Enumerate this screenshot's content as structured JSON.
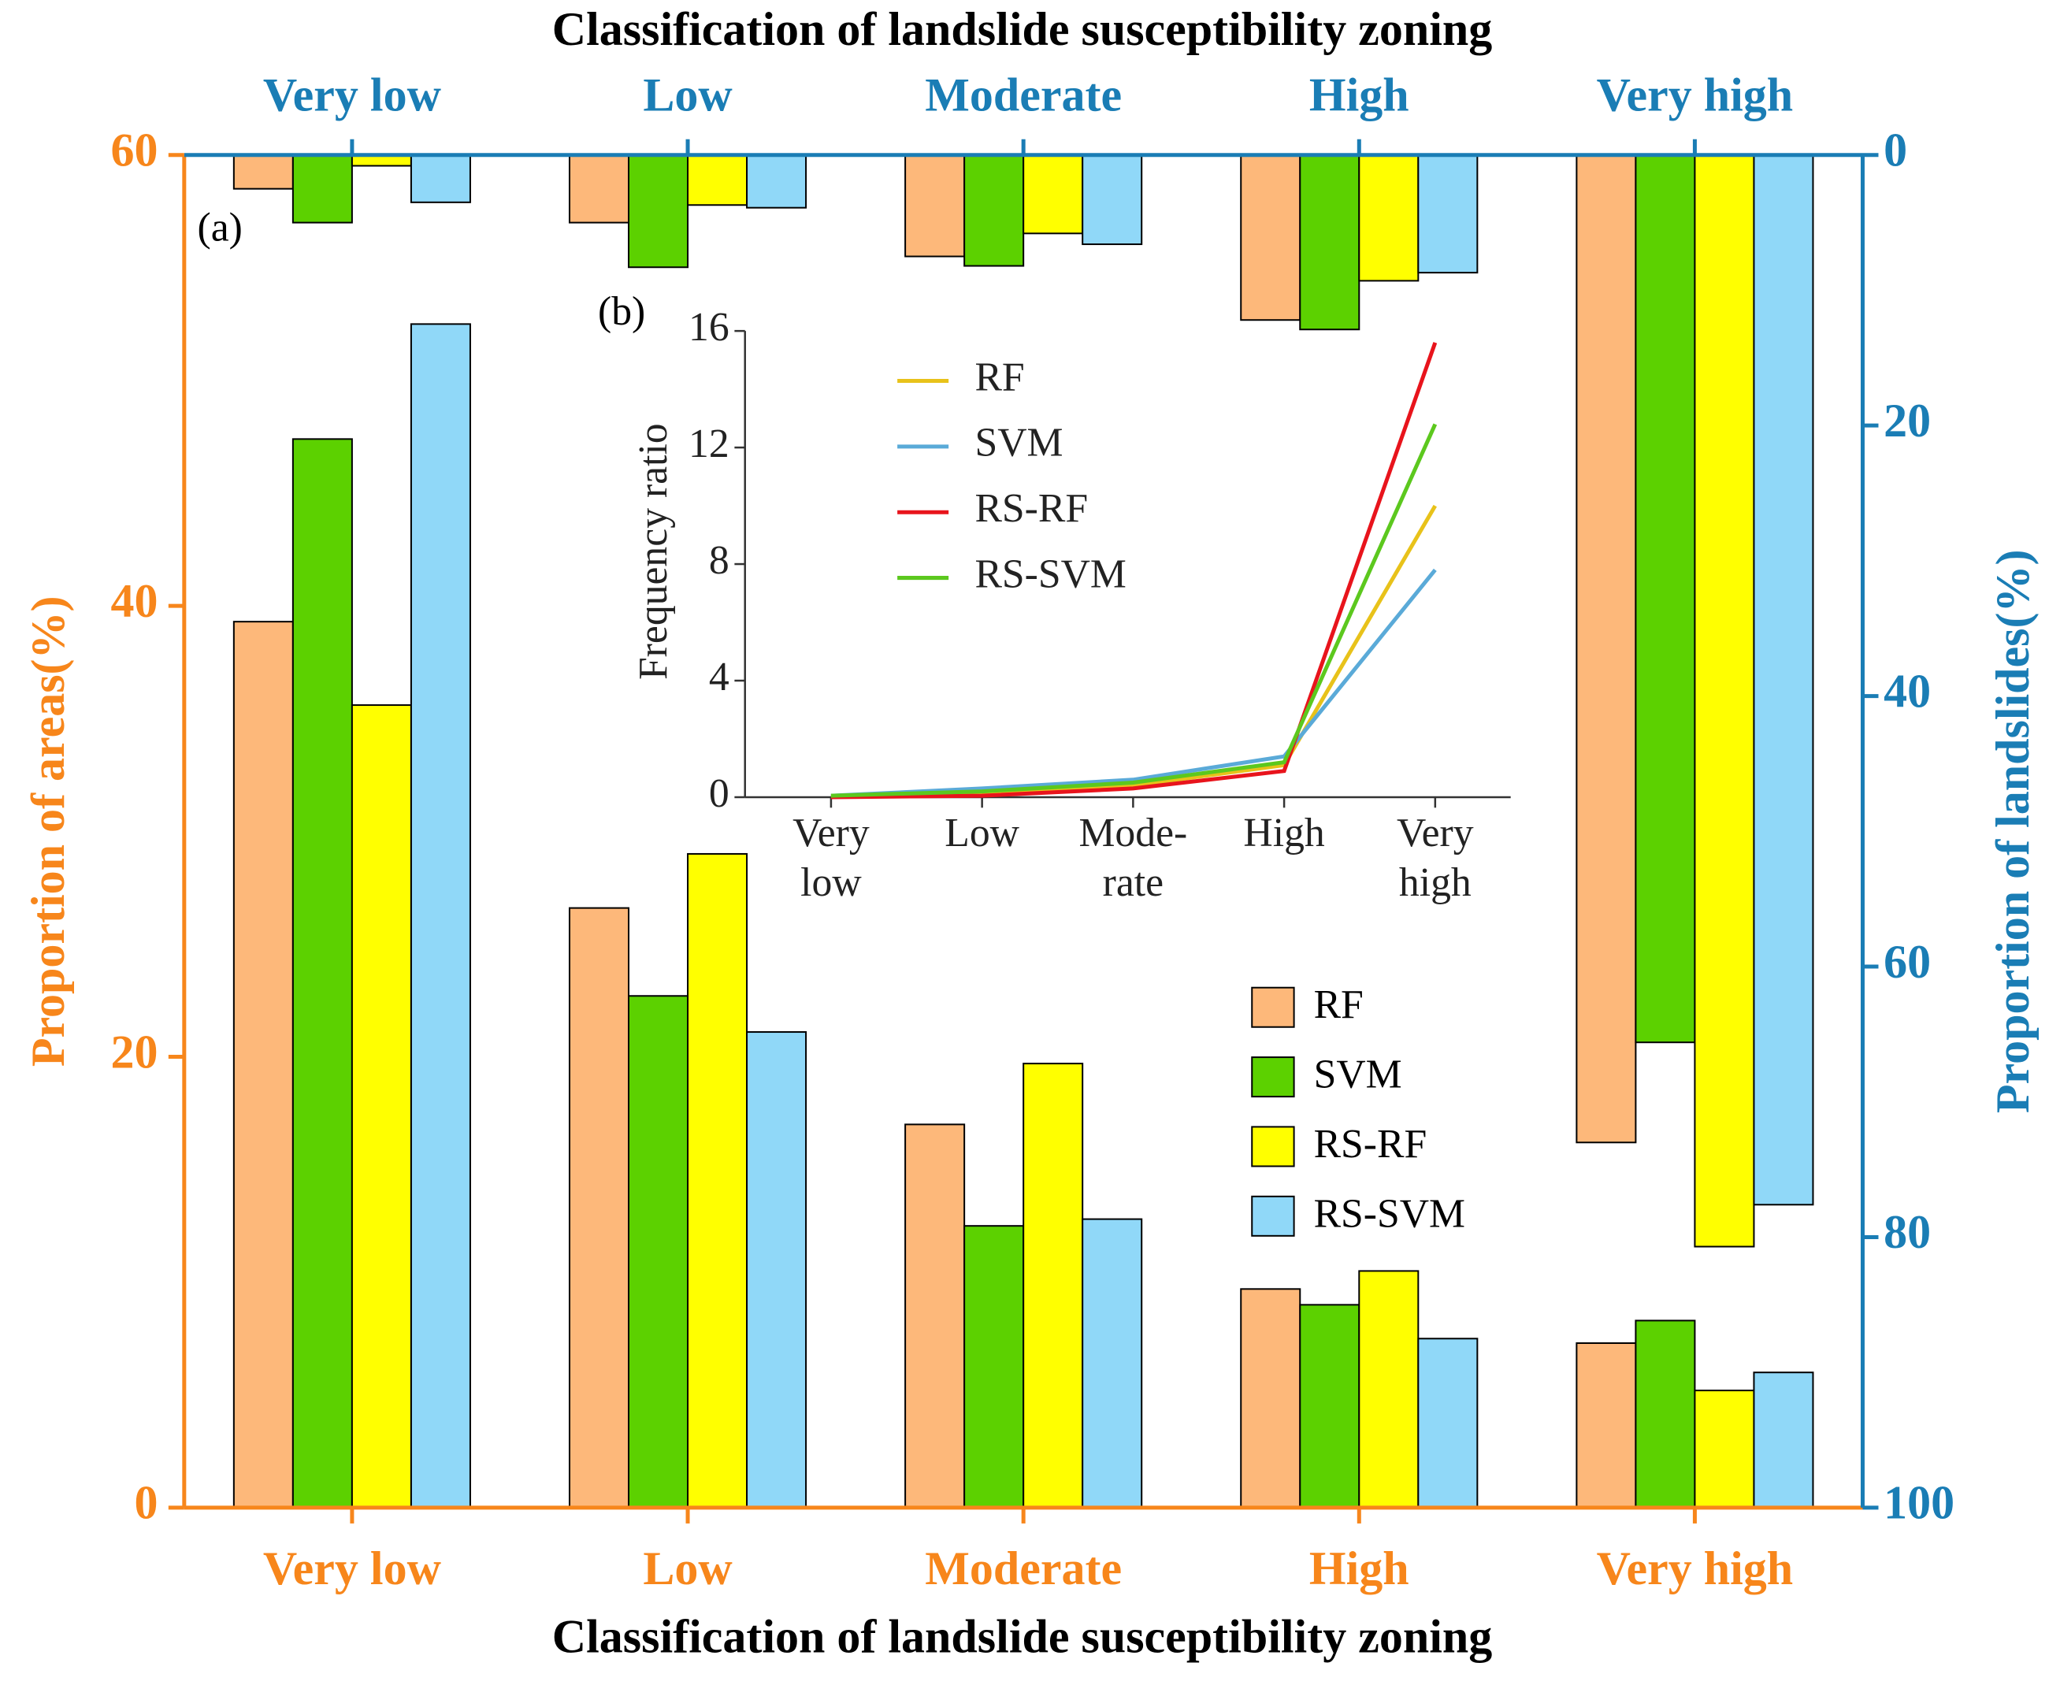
{
  "chart_data": [
    {
      "type": "bar",
      "panel_label": "(a)",
      "x2label": "Classification  of landslide susceptibility zoning",
      "xlabel": "Classification  of landslide susceptibility zoning",
      "x2categories": [
        "Very low",
        "Low",
        "Moderate",
        "High",
        "Very high"
      ],
      "categories": [
        "Very low",
        "Low",
        "Moderate",
        "High",
        "Very high"
      ],
      "ylabel": "Proportion of  areas(%)",
      "y2label": "Proportion of landslides(%)",
      "ylim": [
        0,
        60
      ],
      "yticks": [
        0,
        20,
        40,
        60
      ],
      "ycolor": "#f7861b",
      "y2lim": [
        0,
        100
      ],
      "y2ticks": [
        0,
        20,
        40,
        60,
        80,
        100
      ],
      "y2_reversed": true,
      "y2color": "#1a7db5",
      "legend": "lower right",
      "series": [
        {
          "name": "RF",
          "color": "#fdb87a",
          "values": [
            39.3,
            26.6,
            17.0,
            9.7,
            7.3
          ],
          "y2_values": [
            2.5,
            5.0,
            7.5,
            12.2,
            73.0
          ]
        },
        {
          "name": "SVM",
          "color": "#5cd100",
          "values": [
            47.4,
            22.7,
            12.5,
            9.0,
            8.3
          ],
          "y2_values": [
            5.0,
            8.3,
            8.2,
            12.9,
            65.6
          ]
        },
        {
          "name": "RS-RF",
          "color": "#ffff00",
          "values": [
            35.6,
            29.0,
            19.7,
            10.5,
            5.2
          ],
          "y2_values": [
            0.8,
            3.7,
            5.8,
            9.3,
            80.7
          ]
        },
        {
          "name": "RS-SVM",
          "color": "#90d8f8",
          "values": [
            52.5,
            21.1,
            12.8,
            7.5,
            6.0
          ],
          "y2_values": [
            3.5,
            3.9,
            6.6,
            8.7,
            77.6
          ]
        }
      ]
    },
    {
      "type": "line",
      "panel_label": "(b)",
      "ylabel": "Frequency ratio",
      "categories": [
        [
          "Very",
          "low"
        ],
        [
          "Low"
        ],
        [
          "Mode-",
          "rate"
        ],
        [
          "High"
        ],
        [
          "Very",
          "high"
        ]
      ],
      "ylim": [
        0,
        16
      ],
      "yticks": [
        0,
        4,
        8,
        12,
        16
      ],
      "legend": "upper left",
      "series": [
        {
          "name": "RF",
          "color": "#e8c21a",
          "values": [
            0.02,
            0.15,
            0.4,
            1.1,
            10.0
          ]
        },
        {
          "name": "SVM",
          "color": "#5aaad8",
          "values": [
            0.05,
            0.3,
            0.6,
            1.4,
            7.8
          ]
        },
        {
          "name": "RS-RF",
          "color": "#e8141c",
          "values": [
            0.0,
            0.05,
            0.3,
            0.9,
            15.6
          ]
        },
        {
          "name": "RS-SVM",
          "color": "#5cc81e",
          "values": [
            0.05,
            0.2,
            0.5,
            1.2,
            12.8
          ]
        }
      ]
    }
  ]
}
